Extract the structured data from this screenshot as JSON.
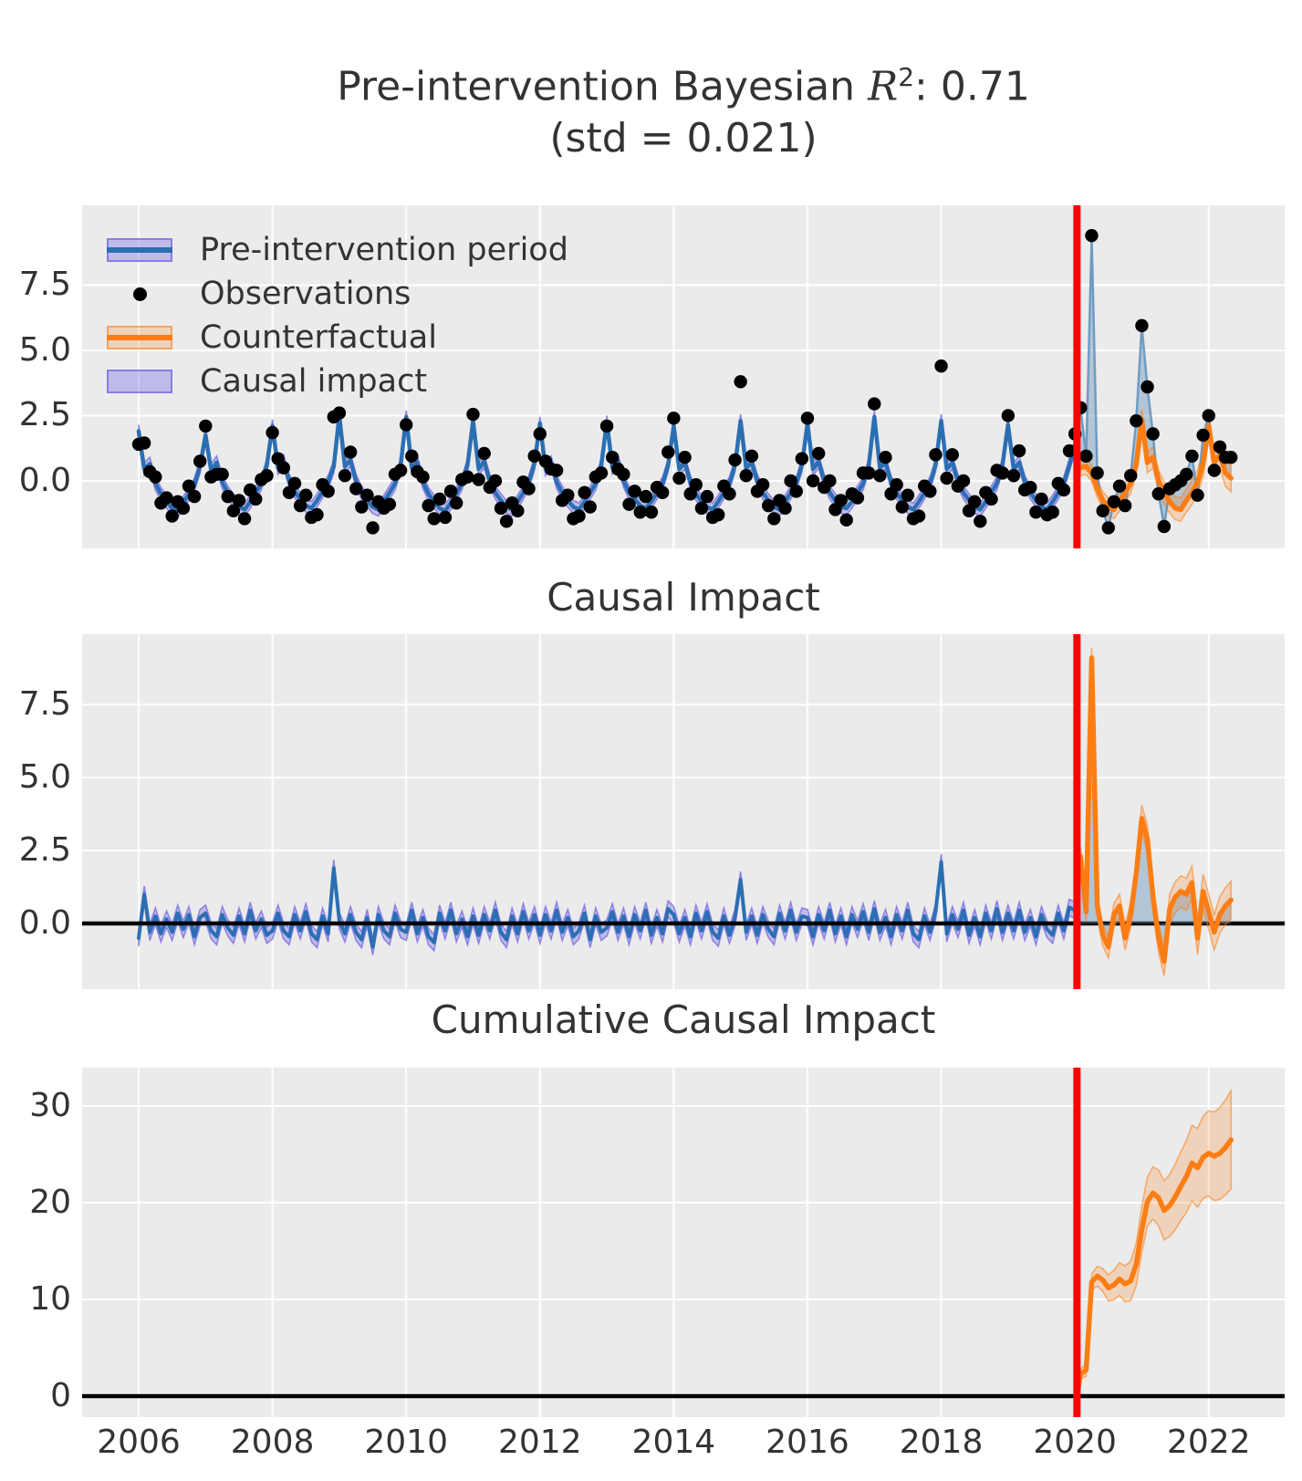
{
  "title": {
    "prefix": "Pre-intervention Bayesian ",
    "r_symbol": "R",
    "exponent": "2",
    "suffix": ": 0.71",
    "line2": "(std = 0.021)"
  },
  "legend": {
    "items": [
      {
        "label": "Pre-intervention period",
        "type": "line-band"
      },
      {
        "label": "Observations",
        "type": "dot"
      },
      {
        "label": "Counterfactual",
        "type": "line-band"
      },
      {
        "label": "Causal impact",
        "type": "patch"
      }
    ]
  },
  "colors": {
    "blue_line": "#2b6fb3",
    "obs_line": "rgba(95,145,188,0.85)",
    "impact_fill": "rgba(98,146,187,0.42)",
    "purple_band_fill": "rgba(122,110,228,0.38)",
    "purple_band_edge": "rgba(122,110,228,0.8)",
    "orange_line": "#fb7d14",
    "orange_band_fill": "rgba(251,125,20,0.22)",
    "orange_band_edge": "rgba(251,125,20,0.55)",
    "red_line": "#ff0000",
    "zero_line": "#000000",
    "dot": "#000000",
    "panel_bg": "#ebebeb",
    "grid": "#ffffff",
    "text": "#333333"
  },
  "chart_data": {
    "type": "line",
    "title": "Pre-intervention Bayesian R2: 0.71 (std = 0.021)",
    "x_start_year": 2006,
    "months_per_step": 1,
    "pre_points": 169,
    "intervention_year": 2020.03,
    "xlim": [
      2005.154,
      2023.136
    ],
    "xticks": [
      2006,
      2008,
      2010,
      2012,
      2014,
      2016,
      2018,
      2020,
      2022
    ],
    "xtick_labels": [
      "2006",
      "2008",
      "2010",
      "2012",
      "2014",
      "2016",
      "2018",
      "2020",
      "2022"
    ],
    "panels": [
      {
        "id": "original",
        "title": "",
        "ylim": [
          -2.59,
          10.56
        ],
        "yticks": [
          0.0,
          2.5,
          5.0,
          7.5
        ],
        "ytick_labels": [
          "0.0",
          "2.5",
          "5.0",
          "7.5"
        ]
      },
      {
        "id": "pointwise",
        "title": "Causal Impact",
        "ylim": [
          -2.25,
          9.91
        ],
        "yticks": [
          0.0,
          2.5,
          5.0,
          7.5
        ],
        "ytick_labels": [
          "0.0",
          "2.5",
          "5.0",
          "7.5"
        ]
      },
      {
        "id": "cumulative",
        "title": "Cumulative Causal Impact",
        "ylim": [
          -2.17,
          33.96
        ],
        "yticks": [
          0,
          10,
          20,
          30
        ],
        "ytick_labels": [
          "0",
          "10",
          "20",
          "30"
        ]
      }
    ],
    "bands": {
      "model_pre": 0.25,
      "model_post_base": 0.3,
      "model_post_growth": 0.008,
      "impact_pre": 0.28,
      "impact_post_base": 0.32,
      "impact_post_growth": 0.012,
      "cumulative_base": 0.5,
      "cumulative_growth": 0.17
    },
    "observations": [
      1.4,
      1.45,
      0.35,
      0.15,
      -0.85,
      -0.65,
      -1.35,
      -0.8,
      -1.05,
      -0.2,
      -0.6,
      0.75,
      2.1,
      0.15,
      0.25,
      0.25,
      -0.6,
      -1.15,
      -0.75,
      -1.45,
      -0.35,
      -0.7,
      0.05,
      0.2,
      1.85,
      0.85,
      0.5,
      -0.45,
      -0.1,
      -0.95,
      -0.55,
      -1.4,
      -1.3,
      -0.15,
      -0.4,
      2.45,
      2.6,
      0.2,
      1.1,
      -0.3,
      -1.0,
      -0.55,
      -1.8,
      -0.8,
      -1.05,
      -0.9,
      0.25,
      0.4,
      2.15,
      0.95,
      0.35,
      0.15,
      -0.95,
      -1.45,
      -0.7,
      -1.4,
      -0.4,
      -0.85,
      0.05,
      0.15,
      2.55,
      0.05,
      1.05,
      -0.25,
      0.0,
      -1.05,
      -1.55,
      -0.85,
      -1.15,
      -0.05,
      -0.3,
      0.95,
      1.8,
      0.75,
      0.45,
      0.4,
      -0.75,
      -0.55,
      -1.45,
      -1.35,
      -0.45,
      -1.0,
      0.15,
      0.3,
      2.1,
      0.9,
      0.45,
      0.25,
      -0.9,
      -0.4,
      -1.2,
      -0.6,
      -1.2,
      -0.25,
      -0.45,
      1.1,
      2.4,
      0.1,
      0.9,
      -0.5,
      -0.15,
      -1.05,
      -0.6,
      -1.4,
      -1.3,
      -0.2,
      -0.5,
      0.8,
      3.8,
      0.2,
      0.95,
      -0.4,
      -0.15,
      -0.95,
      -1.45,
      -0.75,
      -1.05,
      0.0,
      -0.4,
      0.85,
      2.4,
      0.0,
      1.05,
      -0.25,
      0.0,
      -1.1,
      -0.75,
      -1.5,
      -0.5,
      -0.65,
      0.3,
      0.3,
      2.95,
      0.2,
      0.9,
      -0.5,
      -0.15,
      -1.0,
      -0.55,
      -1.45,
      -1.35,
      -0.2,
      -0.4,
      1.0,
      4.4,
      0.1,
      1.0,
      -0.2,
      0.0,
      -1.15,
      -0.8,
      -1.55,
      -0.45,
      -0.7,
      0.4,
      0.3,
      2.5,
      0.2,
      1.15,
      -0.35,
      -0.25,
      -1.2,
      -0.7,
      -1.3,
      -1.2,
      -0.1,
      -0.35,
      1.15,
      1.8,
      2.8,
      0.95,
      9.4,
      0.3,
      -1.15,
      -1.8,
      -0.8,
      -0.2,
      -0.95,
      0.2,
      2.3,
      5.95,
      3.6,
      1.8,
      -0.5,
      -1.75,
      -0.3,
      -0.15,
      0.0,
      0.25,
      0.95,
      -0.55,
      1.75,
      2.5,
      0.4,
      1.3,
      0.9,
      0.9
    ],
    "model_mean": [
      1.9,
      0.45,
      0.65,
      -0.1,
      -0.5,
      -0.8,
      -1.05,
      -1.15,
      -0.85,
      -0.5,
      -0.15,
      0.55,
      1.75,
      0.4,
      0.7,
      -0.05,
      -0.45,
      -0.75,
      -1.0,
      -1.1,
      -0.8,
      -0.45,
      -0.1,
      0.6,
      2.1,
      0.5,
      0.75,
      0.0,
      -0.4,
      -0.7,
      -0.95,
      -1.05,
      -0.75,
      -0.4,
      -0.05,
      0.55,
      2.5,
      0.55,
      0.8,
      0.0,
      -0.45,
      -0.75,
      -1.0,
      -1.1,
      -0.8,
      -0.45,
      -0.1,
      0.6,
      2.45,
      0.5,
      0.7,
      -0.05,
      -0.5,
      -0.8,
      -1.05,
      -1.15,
      -0.85,
      -0.5,
      -0.1,
      0.6,
      2.3,
      0.45,
      0.75,
      0.0,
      -0.45,
      -0.75,
      -1.0,
      -1.1,
      -0.8,
      -0.45,
      -0.05,
      0.65,
      2.2,
      0.45,
      0.7,
      -0.05,
      -0.45,
      -0.75,
      -1.0,
      -1.1,
      -0.8,
      -0.45,
      -0.1,
      0.6,
      2.25,
      0.5,
      0.75,
      0.0,
      -0.45,
      -0.7,
      -0.95,
      -1.05,
      -0.8,
      -0.45,
      -0.1,
      0.6,
      2.1,
      0.45,
      0.7,
      -0.05,
      -0.5,
      -0.8,
      -1.0,
      -1.1,
      -0.8,
      -0.45,
      -0.1,
      0.6,
      2.3,
      0.5,
      0.7,
      0.0,
      -0.45,
      -0.75,
      -1.0,
      -1.1,
      -0.8,
      -0.45,
      -0.1,
      0.6,
      2.2,
      0.45,
      0.75,
      0.0,
      -0.45,
      -0.75,
      -1.0,
      -1.05,
      -0.8,
      -0.45,
      -0.1,
      0.6,
      2.45,
      0.5,
      0.7,
      -0.05,
      -0.45,
      -0.75,
      -1.0,
      -1.1,
      -0.8,
      -0.45,
      -0.1,
      0.6,
      2.3,
      0.45,
      0.7,
      0.0,
      -0.45,
      -0.75,
      -1.0,
      -1.1,
      -0.8,
      -0.45,
      -0.1,
      0.6,
      2.15,
      0.45,
      0.7,
      -0.05,
      -0.45,
      -0.75,
      -1.0,
      -1.1,
      -0.8,
      -0.45,
      -0.1,
      0.6,
      1.35,
      0.5,
      0.55,
      0.3,
      -0.3,
      -0.75,
      -1.0,
      -1.1,
      -0.8,
      -0.45,
      -0.1,
      0.6,
      2.35,
      0.7,
      0.9,
      0.0,
      -0.45,
      -0.8,
      -1.05,
      -1.1,
      -0.75,
      -0.45,
      -0.05,
      0.65,
      2.1,
      0.7,
      1.0,
      0.3,
      0.1
    ]
  }
}
